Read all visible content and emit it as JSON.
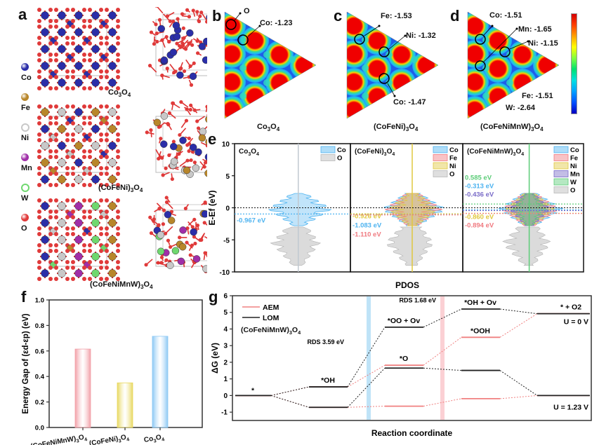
{
  "panels": {
    "a": {
      "letter": "a",
      "legend": [
        {
          "name": "Co",
          "color": "#2b2ea8"
        },
        {
          "name": "Fe",
          "color": "#b8862a"
        },
        {
          "name": "Ni",
          "color": "#c8c8c8"
        },
        {
          "name": "Mn",
          "color": "#a02ea8"
        },
        {
          "name": "W",
          "color": "#6fd86f"
        },
        {
          "name": "O",
          "color": "#e03a3a"
        }
      ],
      "structures": [
        {
          "label": "Co3O4",
          "base": "Co",
          "sub1": "3",
          "mid": "O",
          "sub2": "4",
          "atoms": [
            "Co"
          ]
        },
        {
          "label": "(CoFeNi)3O4",
          "base": "(CoFeNi)",
          "sub1": "3",
          "mid": "O",
          "sub2": "4",
          "atoms": [
            "Fe",
            "Ni",
            "Co"
          ]
        },
        {
          "label": "(CoFeNiMnW)3O4",
          "base": "(CoFeNiMnW)",
          "sub1": "3",
          "mid": "O",
          "sub2": "4",
          "atoms": [
            "Co",
            "Ni",
            "Mn",
            "W",
            "Fe"
          ]
        }
      ]
    },
    "b": {
      "letter": "b",
      "title_base": "Co",
      "title_sub1": "3",
      "title_mid": "O",
      "title_sub2": "4",
      "annotations": [
        "O",
        "Co: -1.23"
      ]
    },
    "c": {
      "letter": "c",
      "title_base": "(CoFeNi)",
      "title_sub1": "3",
      "title_mid": "O",
      "title_sub2": "4",
      "annotations": [
        "Fe: -1.53",
        "Ni: -1.32",
        "Co: -1.47"
      ]
    },
    "d": {
      "letter": "d",
      "title_base": "(CoFeNiMnW)",
      "title_sub1": "3",
      "title_mid": "O",
      "title_sub2": "4",
      "annotations": [
        "Co: -1.51",
        "Mn: -1.65",
        "Ni: -1.15",
        "Fe: -1.51",
        "W: -2.64"
      ]
    },
    "e": {
      "letter": "e"
    },
    "f": {
      "letter": "f"
    },
    "g": {
      "letter": "g"
    }
  },
  "colors": {
    "Co": "#4db3f0",
    "Fe": "#f07a80",
    "Ni": "#e0c840",
    "Mn": "#7a6cc8",
    "W": "#5ccc78",
    "O": "#b8b8b8",
    "AEM": "#f08080",
    "LOM": "#222222",
    "rds_blue": "#bfe3f7",
    "rds_pink": "#fbd0d4"
  },
  "chart_data": [
    {
      "id": "e",
      "type": "area",
      "title": "",
      "xlabel": "PDOS",
      "ylabel": "E-Ef (eV)",
      "ylim": [
        -10,
        10
      ],
      "yticks": [
        -10,
        -5,
        0,
        5,
        10
      ],
      "subplots": [
        {
          "title": "Co3O4",
          "title_base": "Co",
          "title_sub1": "3",
          "title_mid": "O",
          "title_sub2": "4",
          "legend": [
            "Co",
            "O"
          ],
          "centers": [
            {
              "element": "Co",
              "value": -0.967,
              "label": "-0.967 eV"
            }
          ]
        },
        {
          "title": "(CoFeNi)3O4",
          "title_base": "(CoFeNi)",
          "title_sub1": "3",
          "title_mid": "O",
          "title_sub2": "4",
          "legend": [
            "Co",
            "Fe",
            "Ni",
            "O"
          ],
          "centers": [
            {
              "element": "Ni",
              "value": -0.926,
              "label": "-0.926 eV"
            },
            {
              "element": "Co",
              "value": -1.083,
              "label": "-1.083 eV"
            },
            {
              "element": "Fe",
              "value": -1.11,
              "label": "-1.110 eV"
            }
          ]
        },
        {
          "title": "(CoFeNiMnW)3O4",
          "title_base": "(CoFeNiMnW)",
          "title_sub1": "3",
          "title_mid": "O",
          "title_sub2": "4",
          "legend": [
            "Co",
            "Fe",
            "Ni",
            "Mn",
            "W",
            "O"
          ],
          "centers": [
            {
              "element": "W",
              "value": 0.585,
              "label": "0.585 eV"
            },
            {
              "element": "Co",
              "value": -0.313,
              "label": "-0.313 eV"
            },
            {
              "element": "Mn",
              "value": -0.436,
              "label": "-0.436 eV"
            },
            {
              "element": "Ni",
              "value": -0.86,
              "label": "-0.860 eV"
            },
            {
              "element": "Fe",
              "value": -0.894,
              "label": "-0.894 eV"
            }
          ]
        }
      ]
    },
    {
      "id": "f",
      "type": "bar",
      "title": "",
      "xlabel": "",
      "ylabel": "Energy Gap of (εd-εp) (eV)",
      "ylim": [
        0,
        1.0
      ],
      "yticks": [
        "0.0",
        "0.2",
        "0.4",
        "0.6",
        "0.8",
        "1.0"
      ],
      "categories": [
        {
          "label": "(CoFeNiMnW)3O4",
          "base": "(CoFeNiMnW)",
          "sub1": "3",
          "mid": "O",
          "sub2": "4"
        },
        {
          "label": "(CoFeNi)3O4",
          "base": "(CoFeNi)",
          "sub1": "3",
          "mid": "O",
          "sub2": "4"
        },
        {
          "label": "Co3O4",
          "base": "Co",
          "sub1": "3",
          "mid": "O",
          "sub2": "4"
        }
      ],
      "values": [
        0.615,
        0.35,
        0.715
      ],
      "bar_colors": [
        "#f2a0a8",
        "#e8d860",
        "#8cc8f4"
      ]
    },
    {
      "id": "g",
      "type": "line",
      "title": "",
      "xlabel": "Reaction coordinate",
      "ylabel": "ΔG (eV)",
      "ylim": [
        -1.5,
        6
      ],
      "yticks": [
        -1,
        0,
        1,
        2,
        3,
        4,
        5,
        6
      ],
      "legend": [
        "AEM",
        "LOM"
      ],
      "legend_position": "top-left",
      "material": "(CoFeNiMnW)3O4",
      "series": [
        {
          "name": "AEM U=0 V",
          "color_key": "AEM",
          "values": [
            0,
            0.52,
            1.82,
            3.5,
            4.92
          ]
        },
        {
          "name": "LOM U=0 V",
          "color_key": "LOM",
          "values": [
            0,
            0.52,
            4.11,
            5.2,
            4.92
          ]
        },
        {
          "name": "AEM U=1.23 V",
          "color_key": "AEM",
          "values": [
            0,
            -0.71,
            -0.64,
            -0.19,
            0
          ]
        },
        {
          "name": "LOM U=1.23 V",
          "color_key": "LOM",
          "values": [
            0,
            -0.71,
            1.65,
            1.51,
            0
          ]
        }
      ],
      "step_labels": [
        "*",
        "*OH",
        "*OO + Ov",
        "*OH + Ov",
        "* + O2",
        "*O",
        "*OOH"
      ],
      "annotations": [
        "RDS 3.59 eV",
        "RDS 1.68 eV",
        "U = 0 V",
        "U = 1.23 V"
      ],
      "material_label": {
        "base": "(CoFeNiMnW)",
        "sub1": "3",
        "mid": "O",
        "sub2": "4"
      }
    }
  ]
}
